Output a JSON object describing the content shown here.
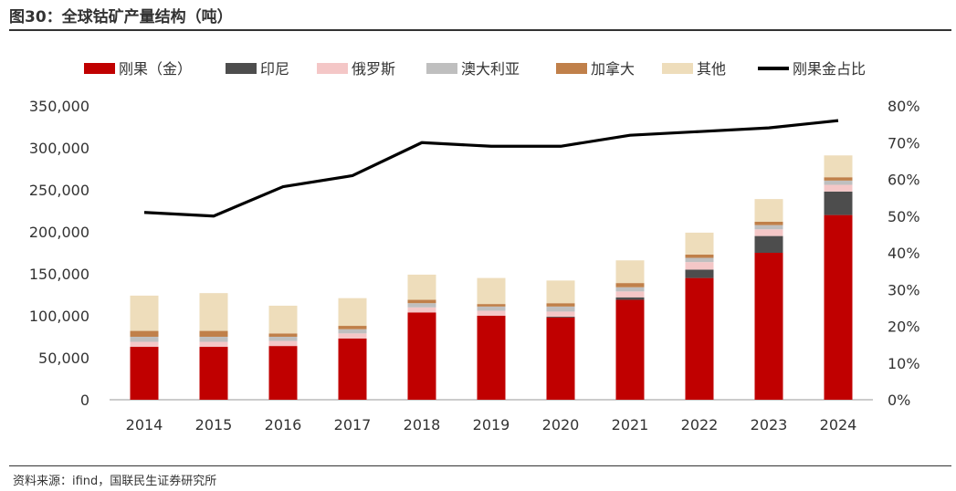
{
  "header": {
    "title": "图30：全球钴矿产量结构（吨）"
  },
  "footer": {
    "source": "资料来源：ifind，国联民生证券研究所"
  },
  "chart_data": {
    "type": "bar",
    "stacked": true,
    "categories": [
      "2014",
      "2015",
      "2016",
      "2017",
      "2018",
      "2019",
      "2020",
      "2021",
      "2022",
      "2023",
      "2024"
    ],
    "series": [
      {
        "name": "刚果（金）",
        "color": "#C00000",
        "values": [
          63000,
          63000,
          64000,
          73000,
          104000,
          100000,
          98000,
          119000,
          145000,
          175000,
          220000
        ]
      },
      {
        "name": "印尼",
        "color": "#4D4D4D",
        "values": [
          0,
          0,
          0,
          0,
          0,
          0,
          1000,
          3000,
          10000,
          20000,
          28000
        ]
      },
      {
        "name": "俄罗斯",
        "color": "#F4C7C7",
        "values": [
          6000,
          6000,
          6000,
          6000,
          6000,
          6000,
          6000,
          7000,
          9000,
          8000,
          8000
        ]
      },
      {
        "name": "澳大利亚",
        "color": "#BFBFBF",
        "values": [
          6000,
          6000,
          5000,
          5000,
          5000,
          5000,
          6000,
          5000,
          5000,
          5000,
          5000
        ]
      },
      {
        "name": "加拿大",
        "color": "#C0804A",
        "values": [
          7000,
          7000,
          4000,
          4000,
          4000,
          3000,
          4000,
          5000,
          4000,
          4000,
          4000
        ]
      },
      {
        "name": "其他",
        "color": "#EEDDBB",
        "values": [
          42000,
          45000,
          33000,
          33000,
          30000,
          31000,
          27000,
          27000,
          26000,
          27000,
          26000
        ]
      }
    ],
    "line_series": {
      "name": "刚果金占比",
      "color": "#000000",
      "axis": "right",
      "values": [
        51,
        50,
        58,
        61,
        70,
        69,
        69,
        72,
        73,
        74,
        76
      ]
    },
    "y_left": {
      "min": 0,
      "max": 350000,
      "step": 50000,
      "tick_labels": [
        "0",
        "50,000",
        "100,000",
        "150,000",
        "200,000",
        "250,000",
        "300,000",
        "350,000"
      ]
    },
    "y_right": {
      "min": 0,
      "max": 80,
      "step": 10,
      "tick_labels": [
        "0%",
        "10%",
        "20%",
        "30%",
        "40%",
        "50%",
        "60%",
        "70%",
        "80%"
      ]
    },
    "legend_position": "top"
  }
}
